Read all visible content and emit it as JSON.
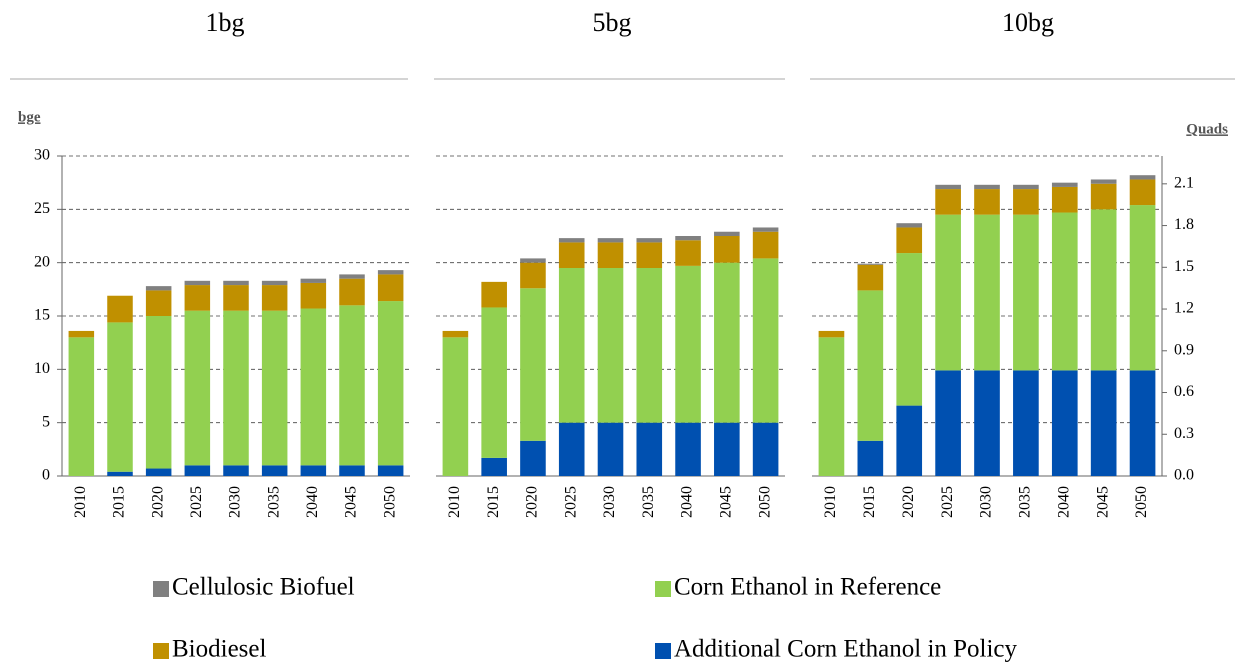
{
  "chart_data": [
    {
      "type": "bar",
      "stacked": true,
      "title": "1bg",
      "y_label": "bge",
      "categories": [
        "2010",
        "2015",
        "2020",
        "2025",
        "2030",
        "2035",
        "2040",
        "2045",
        "2050"
      ],
      "ylim": [
        0,
        30
      ],
      "yticks": [
        0,
        5,
        10,
        15,
        20,
        25,
        30
      ],
      "grid": true,
      "series": [
        {
          "name": "Additional Corn Ethanol in Policy",
          "color": "#0050b0",
          "values": [
            0,
            0.4,
            0.7,
            1,
            1,
            1,
            1,
            1,
            1
          ]
        },
        {
          "name": "Corn Ethanol in Reference",
          "color": "#92d050",
          "values": [
            13,
            14,
            14.3,
            14.5,
            14.5,
            14.5,
            14.7,
            15,
            15.4
          ]
        },
        {
          "name": "Biodiesel",
          "color": "#c09000",
          "values": [
            0.6,
            2.5,
            2.4,
            2.4,
            2.4,
            2.4,
            2.4,
            2.5,
            2.5
          ]
        },
        {
          "name": "Cellulosic Biofuel",
          "color": "#808080",
          "values": [
            0,
            0,
            0.4,
            0.4,
            0.4,
            0.4,
            0.4,
            0.4,
            0.4
          ]
        }
      ]
    },
    {
      "type": "bar",
      "stacked": true,
      "title": "5bg",
      "categories": [
        "2010",
        "2015",
        "2020",
        "2025",
        "2030",
        "2035",
        "2040",
        "2045",
        "2050"
      ],
      "ylim": [
        0,
        30
      ],
      "grid": true,
      "series": [
        {
          "name": "Additional Corn Ethanol in Policy",
          "color": "#0050b0",
          "values": [
            0,
            1.7,
            3.3,
            5,
            5,
            5,
            5,
            5,
            5
          ]
        },
        {
          "name": "Corn Ethanol in Reference",
          "color": "#92d050",
          "values": [
            13,
            14.1,
            14.3,
            14.5,
            14.5,
            14.5,
            14.7,
            15,
            15.4
          ]
        },
        {
          "name": "Biodiesel",
          "color": "#c09000",
          "values": [
            0.6,
            2.4,
            2.4,
            2.4,
            2.4,
            2.4,
            2.4,
            2.5,
            2.5
          ]
        },
        {
          "name": "Cellulosic Biofuel",
          "color": "#808080",
          "values": [
            0,
            0,
            0.4,
            0.4,
            0.4,
            0.4,
            0.4,
            0.4,
            0.4
          ]
        }
      ]
    },
    {
      "type": "bar",
      "stacked": true,
      "title": "10bg",
      "y2_label": "Quads",
      "categories": [
        "2010",
        "2015",
        "2020",
        "2025",
        "2030",
        "2035",
        "2040",
        "2045",
        "2050"
      ],
      "ylim": [
        0,
        30
      ],
      "grid": true,
      "y2lim": [
        0,
        2.3
      ],
      "y2ticks": [
        {
          "value": 0,
          "label": "0.0"
        },
        0.3,
        0.6,
        0.9,
        1.2,
        1.5,
        1.8,
        2.1
      ],
      "series": [
        {
          "name": "Additional Corn Ethanol in Policy",
          "color": "#0050b0",
          "values": [
            0,
            3.3,
            6.6,
            9.9,
            9.9,
            9.9,
            9.9,
            9.9,
            9.9
          ]
        },
        {
          "name": "Corn Ethanol in Reference",
          "color": "#92d050",
          "values": [
            13,
            14.1,
            14.3,
            14.6,
            14.6,
            14.6,
            14.8,
            15.1,
            15.5
          ]
        },
        {
          "name": "Biodiesel",
          "color": "#c09000",
          "values": [
            0.6,
            2.4,
            2.4,
            2.4,
            2.4,
            2.4,
            2.4,
            2.4,
            2.4
          ]
        },
        {
          "name": "Cellulosic Biofuel",
          "color": "#808080",
          "values": [
            0,
            0.1,
            0.4,
            0.4,
            0.4,
            0.4,
            0.4,
            0.4,
            0.4
          ]
        }
      ]
    }
  ]
}
